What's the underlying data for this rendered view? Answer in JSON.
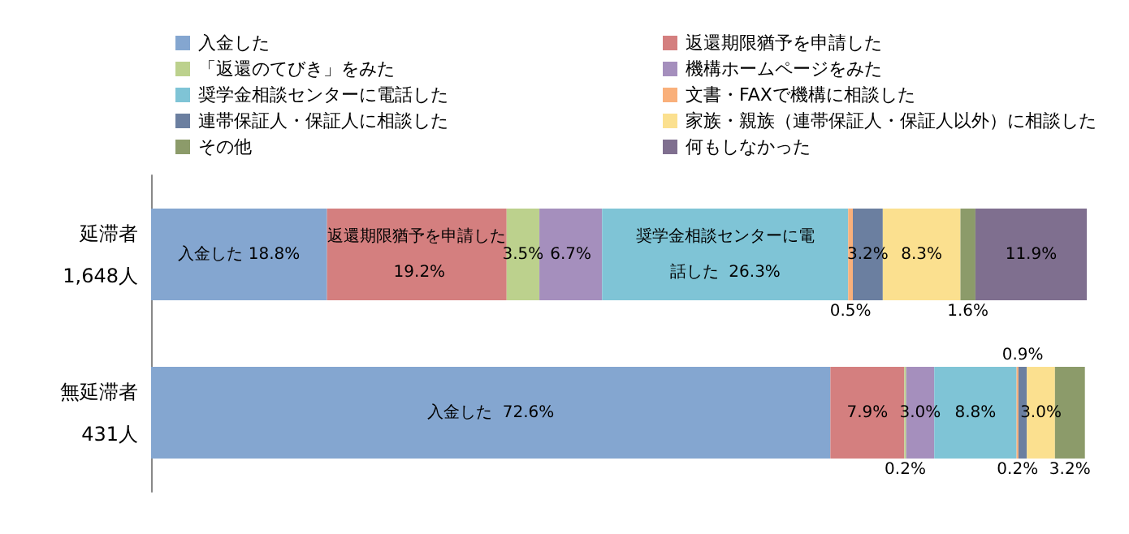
{
  "chart_data": {
    "type": "bar",
    "orientation": "horizontal",
    "stacked": true,
    "legend": "top",
    "categories": [
      "延滞者\n1,648人",
      "無延滞者\n431人"
    ],
    "series": [
      {
        "name": "入金した",
        "color": "#84a6d0",
        "values": [
          18.8,
          72.6
        ],
        "value_labels": [
          "入金した 18.8%",
          "入金した  72.6%"
        ]
      },
      {
        "name": "返還期限猶予を申請した",
        "color": "#d47f7f",
        "values": [
          19.2,
          7.9
        ],
        "value_labels": [
          "返還期限猶予を申請した 19.2%",
          "7.9%"
        ]
      },
      {
        "name": "「返還のてびき」をみた",
        "color": "#bcd18d",
        "values": [
          3.5,
          0.2
        ],
        "value_labels": [
          "3.5%",
          "0.2%"
        ]
      },
      {
        "name": "機構ホームページをみた",
        "color": "#a58fbd",
        "values": [
          6.7,
          3.0
        ],
        "value_labels": [
          "6.7%",
          "3.0%"
        ]
      },
      {
        "name": "奨学金相談センターに電話した",
        "color": "#7fc4d6",
        "values": [
          26.3,
          8.8
        ],
        "value_labels": [
          "奨学金相談センターに電話した  26.3%",
          "8.8%"
        ]
      },
      {
        "name": "文書・FAXで機構に相談した",
        "color": "#f9b07b",
        "values": [
          0.5,
          0.2
        ],
        "value_labels": [
          "0.5%",
          "0.2%"
        ]
      },
      {
        "name": "連帯保証人・保証人に相談した",
        "color": "#6b7fa0",
        "values": [
          3.2,
          0.9
        ],
        "value_labels": [
          "3.2%",
          "0.9%"
        ]
      },
      {
        "name": "家族・親族（連帯保証人・保証人以外）に相談した",
        "color": "#fbe08f",
        "values": [
          8.3,
          3.0
        ],
        "value_labels": [
          "8.3%",
          "3.0%"
        ]
      },
      {
        "name": "その他",
        "color": "#8c9b6a",
        "values": [
          1.6,
          3.2
        ],
        "value_labels": [
          "1.6%",
          "3.2%"
        ]
      },
      {
        "name": "何もしなかった",
        "color": "#7f6f8f",
        "values": [
          11.9,
          null
        ],
        "value_labels": [
          "11.9%",
          null
        ]
      }
    ]
  }
}
